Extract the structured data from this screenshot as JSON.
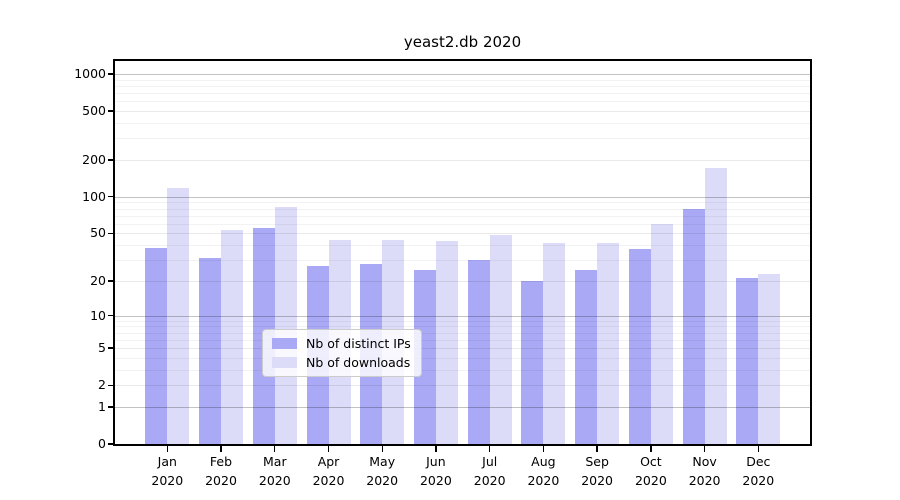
{
  "chart_data": {
    "type": "bar",
    "title": "yeast2.db 2020",
    "categories": [
      "Jan",
      "Feb",
      "Mar",
      "Apr",
      "May",
      "Jun",
      "Jul",
      "Aug",
      "Sep",
      "Oct",
      "Nov",
      "Dec"
    ],
    "category_year_label": "2020",
    "series": [
      {
        "name": "Nb of distinct IPs",
        "color": "#a9a9f5",
        "values": [
          38,
          31,
          55,
          27,
          28,
          25,
          30,
          20,
          25,
          37,
          80,
          21
        ]
      },
      {
        "name": "Nb of downloads",
        "color": "#dcdcf8",
        "values": [
          118,
          53,
          83,
          44,
          44,
          43,
          49,
          42,
          42,
          60,
          173,
          23
        ]
      }
    ],
    "y_scale": "log10(1+v)",
    "y_ticks": [
      0,
      1,
      2,
      5,
      10,
      20,
      50,
      100,
      200,
      500,
      1000
    ],
    "y_minor_gridlines": [
      3,
      4,
      6,
      7,
      8,
      9,
      30,
      40,
      60,
      70,
      80,
      90,
      300,
      400,
      600,
      700,
      800,
      900
    ],
    "ylim": [
      0,
      1280
    ],
    "grid": "horizontal",
    "legend_position": "inside-bottom-center"
  }
}
